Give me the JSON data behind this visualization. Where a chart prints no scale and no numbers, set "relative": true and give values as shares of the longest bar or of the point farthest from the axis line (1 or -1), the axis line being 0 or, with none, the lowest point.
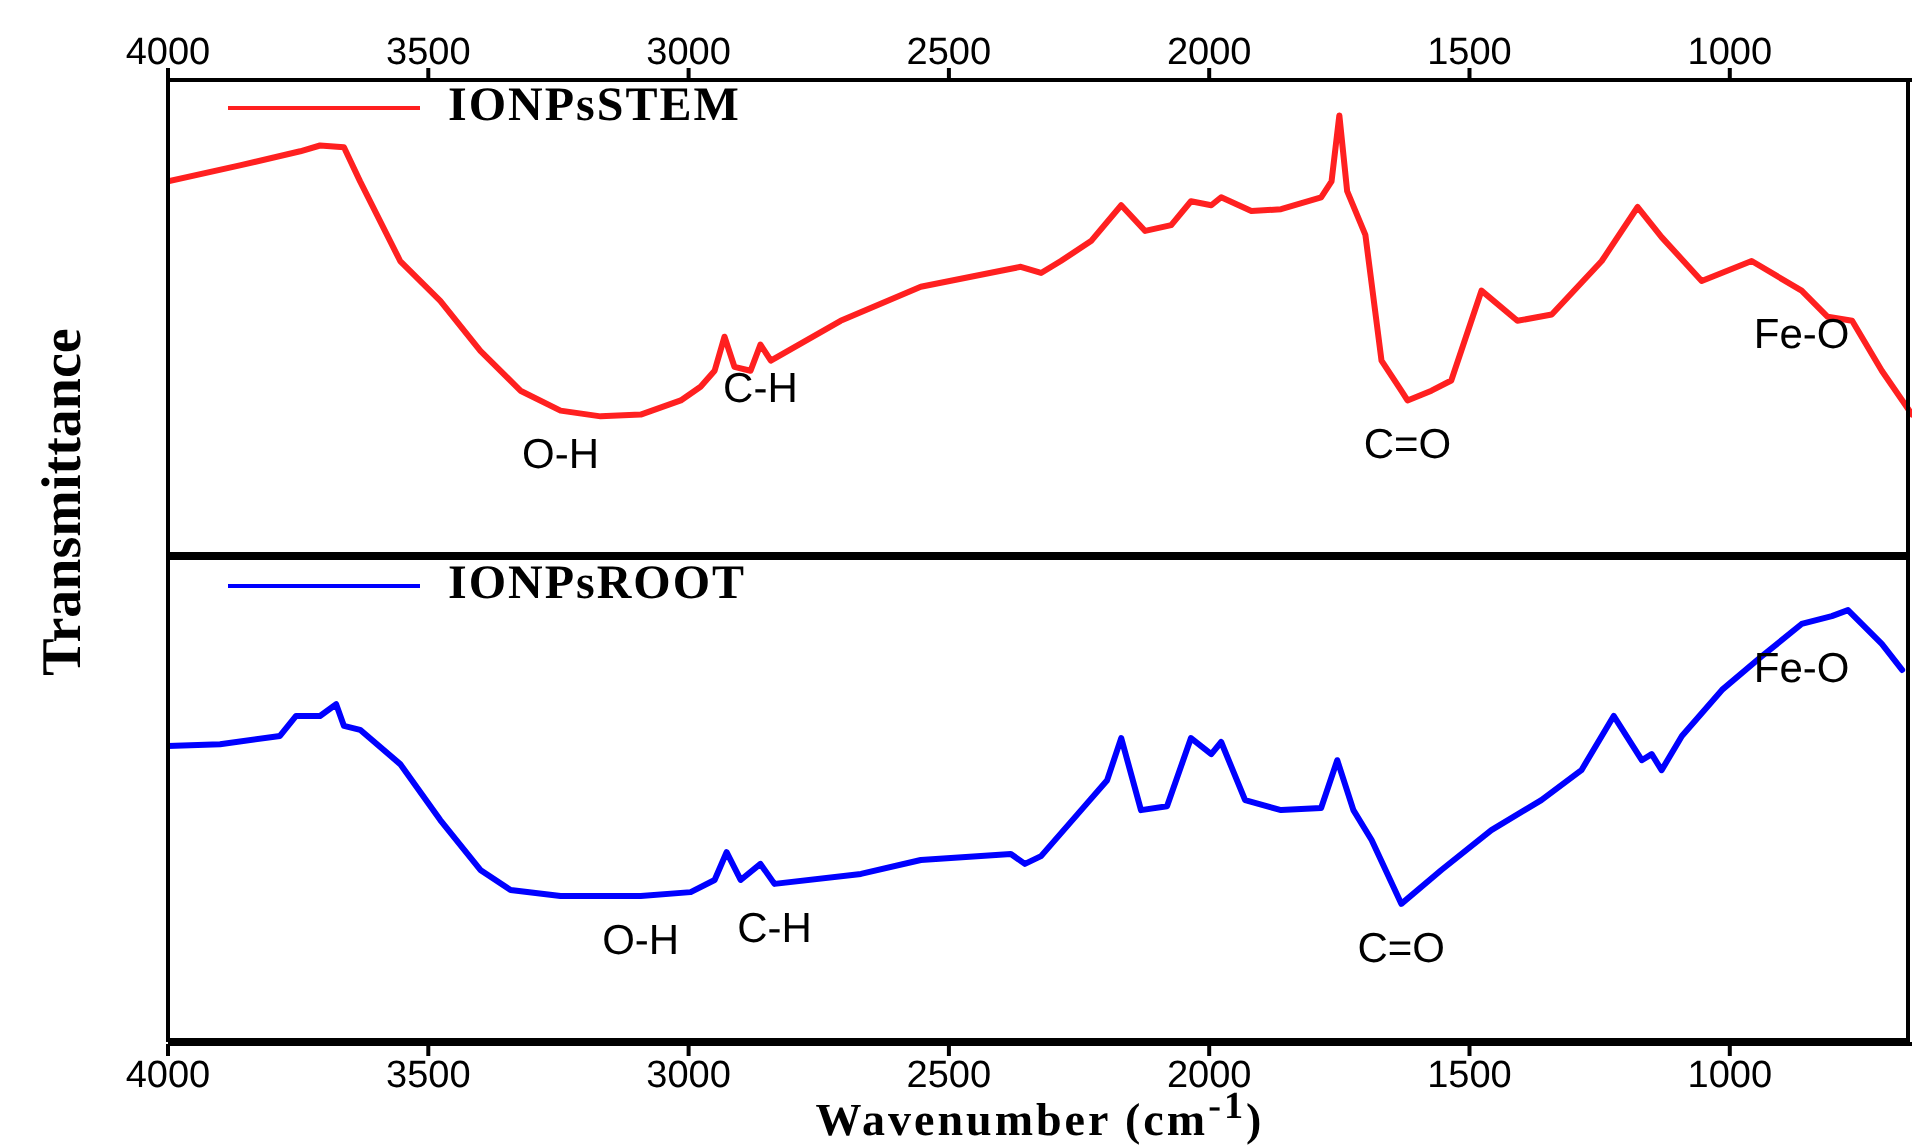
{
  "chart_data": [
    {
      "type": "line",
      "relative": true,
      "ylabel": "Transmittance",
      "xlim": [
        4000,
        650
      ],
      "xticks": [
        4000,
        3500,
        3000,
        2500,
        2000,
        1500,
        1000
      ],
      "legend": "top left",
      "series": [
        {
          "name": "IONPsSTEM",
          "color": "#ff2020",
          "x": [
            4000,
            3862,
            3746,
            3708,
            3662,
            3631,
            3554,
            3477,
            3400,
            3323,
            3246,
            3169,
            3092,
            3015,
            2977,
            2950,
            2931,
            2912,
            2881,
            2862,
            2842,
            2708,
            2554,
            2400,
            2362,
            2323,
            2285,
            2227,
            2169,
            2123,
            2073,
            2035,
            1996,
            1977,
            1919,
            1862,
            1785,
            1765,
            1750,
            1735,
            1700,
            1669,
            1631,
            1619,
            1573,
            1535,
            1477,
            1408,
            1342,
            1246,
            1177,
            1131,
            1054,
            958,
            862,
            812,
            765,
            708,
            650
          ],
          "values": [
            0.851,
            0.887,
            0.919,
            0.932,
            0.928,
            0.851,
            0.671,
            0.581,
            0.468,
            0.378,
            0.333,
            0.32,
            0.324,
            0.356,
            0.387,
            0.423,
            0.5,
            0.432,
            0.423,
            0.482,
            0.446,
            0.536,
            0.613,
            0.649,
            0.658,
            0.644,
            0.671,
            0.716,
            0.797,
            0.739,
            0.752,
            0.806,
            0.797,
            0.815,
            0.784,
            0.788,
            0.815,
            0.851,
            1.0,
            0.829,
            0.73,
            0.446,
            0.378,
            0.356,
            0.378,
            0.401,
            0.604,
            0.536,
            0.55,
            0.671,
            0.793,
            0.725,
            0.626,
            0.671,
            0.604,
            0.545,
            0.536,
            0.423,
            0.324
          ]
        }
      ],
      "annotations": [
        {
          "text": "O-H",
          "x": 3246,
          "y": 0.333
        },
        {
          "text": "C-H",
          "x": 2862,
          "y": 0.482
        },
        {
          "text": "C=O",
          "x": 1619,
          "y": 0.356
        },
        {
          "text": "Fe-O",
          "x": 862,
          "y": 0.604
        }
      ]
    },
    {
      "type": "line",
      "relative": true,
      "xlabel": "Wavenumber (cm$^{-1}$)",
      "xlim": [
        4000,
        650
      ],
      "xticks": [
        4000,
        3500,
        3000,
        2500,
        2000,
        1500,
        1000
      ],
      "legend": "top left",
      "series": [
        {
          "name": "IONPsROOT",
          "color": "#0000ff",
          "x": [
            4000,
            3900,
            3785,
            3754,
            3708,
            3677,
            3662,
            3631,
            3554,
            3477,
            3400,
            3342,
            3246,
            3092,
            2996,
            2950,
            2927,
            2900,
            2862,
            2835,
            2669,
            2554,
            2381,
            2354,
            2323,
            2246,
            2196,
            2169,
            2131,
            2081,
            2035,
            1996,
            1977,
            1931,
            1862,
            1785,
            1754,
            1723,
            1688,
            1631,
            1554,
            1458,
            1362,
            1285,
            1223,
            1169,
            1150,
            1131,
            1092,
            1015,
            938,
            862,
            804,
            773,
            708,
            669
          ],
          "values": [
            0.687,
            0.691,
            0.71,
            0.756,
            0.756,
            0.783,
            0.733,
            0.724,
            0.645,
            0.516,
            0.401,
            0.355,
            0.341,
            0.341,
            0.35,
            0.378,
            0.442,
            0.378,
            0.415,
            0.369,
            0.392,
            0.424,
            0.438,
            0.415,
            0.433,
            0.539,
            0.608,
            0.705,
            0.539,
            0.548,
            0.705,
            0.668,
            0.696,
            0.562,
            0.539,
            0.544,
            0.654,
            0.539,
            0.47,
            0.323,
            0.401,
            0.493,
            0.562,
            0.631,
            0.756,
            0.654,
            0.668,
            0.631,
            0.71,
            0.816,
            0.894,
            0.968,
            0.986,
            1.0,
            0.922,
            0.862
          ]
        }
      ],
      "annotations": [
        {
          "text": "O-H",
          "x": 3092,
          "y": 0.341
        },
        {
          "text": "C-H",
          "x": 2835,
          "y": 0.369
        },
        {
          "text": "C=O",
          "x": 1631,
          "y": 0.323
        },
        {
          "text": "Fe-O",
          "x": 862,
          "y": 0.968
        }
      ]
    }
  ]
}
